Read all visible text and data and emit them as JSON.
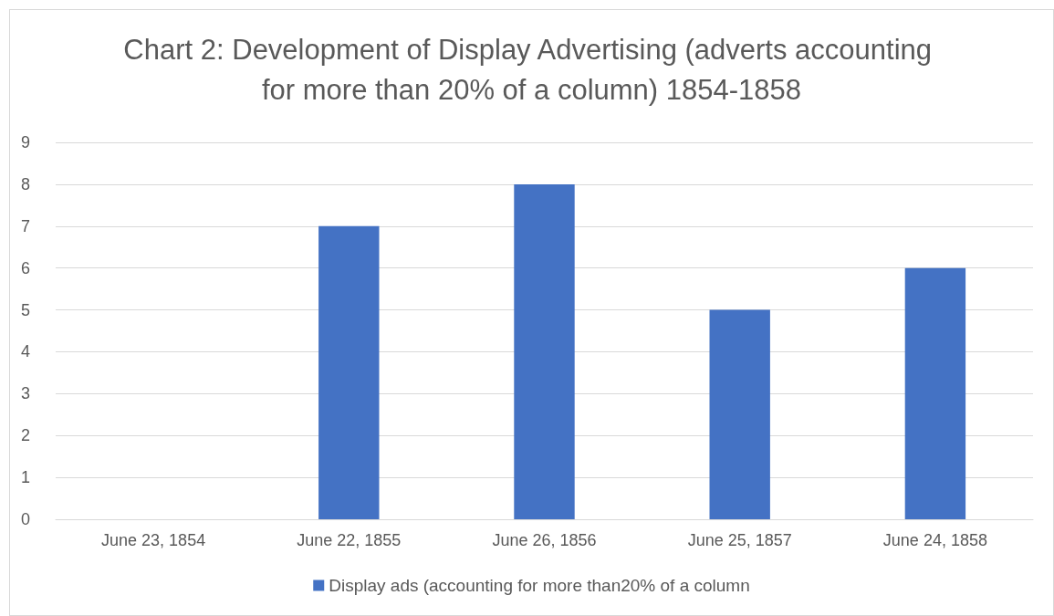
{
  "chart_data": {
    "type": "bar",
    "title": "Chart 2: Development of Display Advertising (adverts accounting for more than 20% of a column) 1854-1858",
    "categories": [
      "June 23, 1854",
      "June 22, 1855",
      "June 26, 1856",
      "June 25, 1857",
      "June 24, 1858"
    ],
    "series": [
      {
        "name": "Display ads (accounting for more than20% of a column",
        "color": "#4472c4",
        "values": [
          0,
          7,
          8,
          5,
          6
        ]
      }
    ],
    "ylim": [
      0,
      9
    ],
    "yticks": [
      0,
      1,
      2,
      3,
      4,
      5,
      6,
      7,
      8,
      9
    ],
    "grid": "y",
    "legend": "bottom"
  }
}
